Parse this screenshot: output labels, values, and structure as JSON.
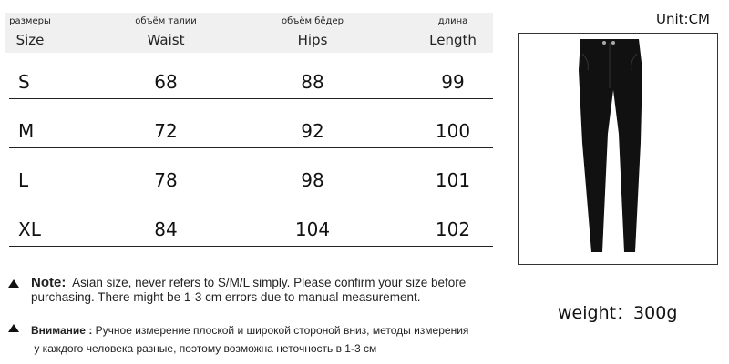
{
  "unit_label": "Unit:CM",
  "headers": [
    {
      "ru": "размеры",
      "en": "Size"
    },
    {
      "ru": "объём талии",
      "en": "Waist"
    },
    {
      "ru": "объём бёдер",
      "en": "Hips"
    },
    {
      "ru": "длина",
      "en": "Length"
    }
  ],
  "rows": [
    [
      "S",
      "68",
      "88",
      "99"
    ],
    [
      "M",
      "72",
      "92",
      "100"
    ],
    [
      "L",
      "78",
      "98",
      "101"
    ],
    [
      "XL",
      "84",
      "104",
      "102"
    ]
  ],
  "note": {
    "label": "Note:",
    "text": "Asian size, never refers to S/M/L simply. Please confirm your size before purchasing. There might be 1-3 cm errors due to manual measurement."
  },
  "note_ru": {
    "label": "Внимание :",
    "text": "Ручное измерение плоской и широкой стороной вниз, методы измерения",
    "text2": "у каждого человека разные, поэтому возможна неточность в 1-3 см"
  },
  "weight": "weight：300g",
  "product_image": "black-pants"
}
